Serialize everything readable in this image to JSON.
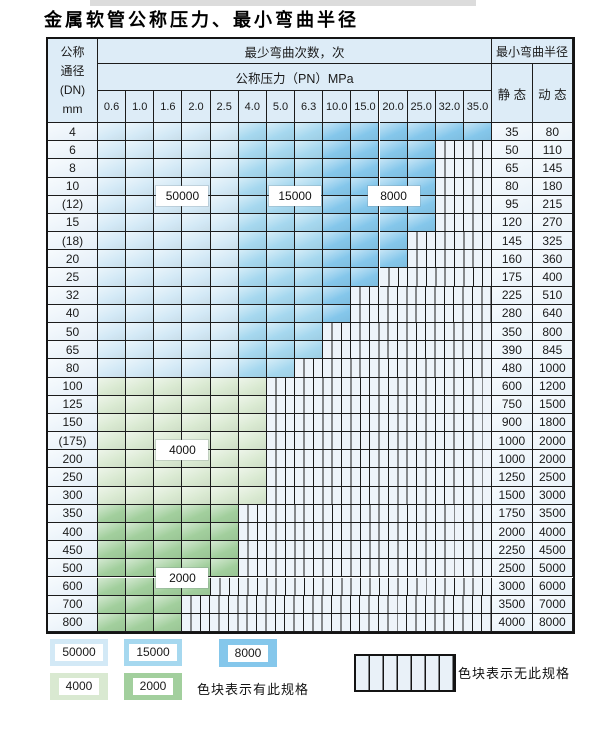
{
  "title": "金属软管公称压力、最小弯曲半径",
  "table": {
    "dn_header": [
      "公称",
      "通径",
      "(DN)",
      "mm"
    ],
    "cycles_header": "最少弯曲次数，次",
    "pn_header": "公称压力（PN）MPa",
    "radius_header": "最小弯曲半径",
    "static_header": "静 态",
    "dynamic_header": "动 态",
    "pn_columns": [
      "0.6",
      "1.0",
      "1.6",
      "2.0",
      "2.5",
      "4.0",
      "5.0",
      "6.3",
      "10.0",
      "15.0",
      "20.0",
      "25.0",
      "32.0",
      "35.0"
    ],
    "overlays": [
      {
        "text": "50000",
        "colBoundary": 3,
        "rowBoundary": 4
      },
      {
        "text": "15000",
        "colBoundary": 7,
        "rowBoundary": 4
      },
      {
        "text": "8000",
        "colBoundary": 10.5,
        "rowBoundary": 4
      },
      {
        "text": "4000",
        "colBoundary": 3,
        "rowBoundary": 18
      },
      {
        "text": "2000",
        "colBoundary": 3,
        "rowBoundary": 25
      }
    ]
  },
  "colors": {
    "c50000": "#d3e9f6",
    "c15000": "#a6d8ef",
    "c8000": "#85c7eb",
    "c4000": "#d9e9d1",
    "c2000": "#a2cf9d",
    "nospec_bg": "#eef4fa",
    "header_bg": "#ddecf7",
    "border": "#1c1c1c"
  },
  "legend": {
    "swatches": [
      {
        "label": "50000",
        "color": "c50000"
      },
      {
        "label": "15000",
        "color": "c15000"
      },
      {
        "label": "8000",
        "color": "c8000"
      },
      {
        "label": "4000",
        "color": "c4000"
      },
      {
        "label": "2000",
        "color": "c2000"
      }
    ],
    "has_spec_text": "色块表示有此规格",
    "no_spec_text": "色块表示无此规格"
  },
  "chart_data": {
    "type": "table",
    "title": "金属软管公称压力、最小弯曲半径",
    "column_group_header": "最少弯曲次数，次",
    "pn_header": "公称压力（PN）MPa",
    "radius_group_header": "最小弯曲半径",
    "pn_columns": [
      "0.6",
      "1.0",
      "1.6",
      "2.0",
      "2.5",
      "4.0",
      "5.0",
      "6.3",
      "10.0",
      "15.0",
      "20.0",
      "25.0",
      "32.0",
      "35.0"
    ],
    "cycle_zones": {
      "50000": "PN 0.6–2.5 (blue rows DN 4–80)",
      "15000": "PN 4.0–6.3 (blue rows DN 4–80)",
      "8000": "PN 10.0–35.0 (blue rows DN 4–80)",
      "4000": "PN 0.6–4.0 (green rows DN 100–300)",
      "2000": "PN 0.6–2.5 max (green rows DN 350–800)"
    },
    "legend_notes": [
      "色块表示有此规格",
      "色块表示无此规格"
    ],
    "rows": [
      {
        "dn": "4",
        "static": "35",
        "dynamic": "80",
        "max_pn": "35.0",
        "palette": "blue"
      },
      {
        "dn": "6",
        "static": "50",
        "dynamic": "110",
        "max_pn": "25.0",
        "palette": "blue"
      },
      {
        "dn": "8",
        "static": "65",
        "dynamic": "145",
        "max_pn": "25.0",
        "palette": "blue"
      },
      {
        "dn": "10",
        "static": "80",
        "dynamic": "180",
        "max_pn": "25.0",
        "palette": "blue"
      },
      {
        "dn": "(12)",
        "static": "95",
        "dynamic": "215",
        "max_pn": "25.0",
        "palette": "blue"
      },
      {
        "dn": "15",
        "static": "120",
        "dynamic": "270",
        "max_pn": "25.0",
        "palette": "blue"
      },
      {
        "dn": "(18)",
        "static": "145",
        "dynamic": "325",
        "max_pn": "20.0",
        "palette": "blue"
      },
      {
        "dn": "20",
        "static": "160",
        "dynamic": "360",
        "max_pn": "20.0",
        "palette": "blue"
      },
      {
        "dn": "25",
        "static": "175",
        "dynamic": "400",
        "max_pn": "15.0",
        "palette": "blue"
      },
      {
        "dn": "32",
        "static": "225",
        "dynamic": "510",
        "max_pn": "10.0",
        "palette": "blue"
      },
      {
        "dn": "40",
        "static": "280",
        "dynamic": "640",
        "max_pn": "10.0",
        "palette": "blue"
      },
      {
        "dn": "50",
        "static": "350",
        "dynamic": "800",
        "max_pn": "6.3",
        "palette": "blue"
      },
      {
        "dn": "65",
        "static": "390",
        "dynamic": "845",
        "max_pn": "6.3",
        "palette": "blue"
      },
      {
        "dn": "80",
        "static": "480",
        "dynamic": "1000",
        "max_pn": "5.0",
        "palette": "blue"
      },
      {
        "dn": "100",
        "static": "600",
        "dynamic": "1200",
        "max_pn": "4.0",
        "palette": "green-4000"
      },
      {
        "dn": "125",
        "static": "750",
        "dynamic": "1500",
        "max_pn": "4.0",
        "palette": "green-4000"
      },
      {
        "dn": "150",
        "static": "900",
        "dynamic": "1800",
        "max_pn": "4.0",
        "palette": "green-4000"
      },
      {
        "dn": "(175)",
        "static": "1000",
        "dynamic": "2000",
        "max_pn": "4.0",
        "palette": "green-4000"
      },
      {
        "dn": "200",
        "static": "1000",
        "dynamic": "2000",
        "max_pn": "4.0",
        "palette": "green-4000"
      },
      {
        "dn": "250",
        "static": "1250",
        "dynamic": "2500",
        "max_pn": "4.0",
        "palette": "green-4000"
      },
      {
        "dn": "300",
        "static": "1500",
        "dynamic": "3000",
        "max_pn": "4.0",
        "palette": "green-4000"
      },
      {
        "dn": "350",
        "static": "1750",
        "dynamic": "3500",
        "max_pn": "2.5",
        "palette": "green-2000"
      },
      {
        "dn": "400",
        "static": "2000",
        "dynamic": "4000",
        "max_pn": "2.5",
        "palette": "green-2000"
      },
      {
        "dn": "450",
        "static": "2250",
        "dynamic": "4500",
        "max_pn": "2.5",
        "palette": "green-2000"
      },
      {
        "dn": "500",
        "static": "2500",
        "dynamic": "5000",
        "max_pn": "2.5",
        "palette": "green-2000"
      },
      {
        "dn": "600",
        "static": "3000",
        "dynamic": "6000",
        "max_pn": "2.0",
        "palette": "green-2000"
      },
      {
        "dn": "700",
        "static": "3500",
        "dynamic": "7000",
        "max_pn": "1.6",
        "palette": "green-2000"
      },
      {
        "dn": "800",
        "static": "4000",
        "dynamic": "8000",
        "max_pn": "1.6",
        "palette": "green-2000"
      }
    ]
  }
}
